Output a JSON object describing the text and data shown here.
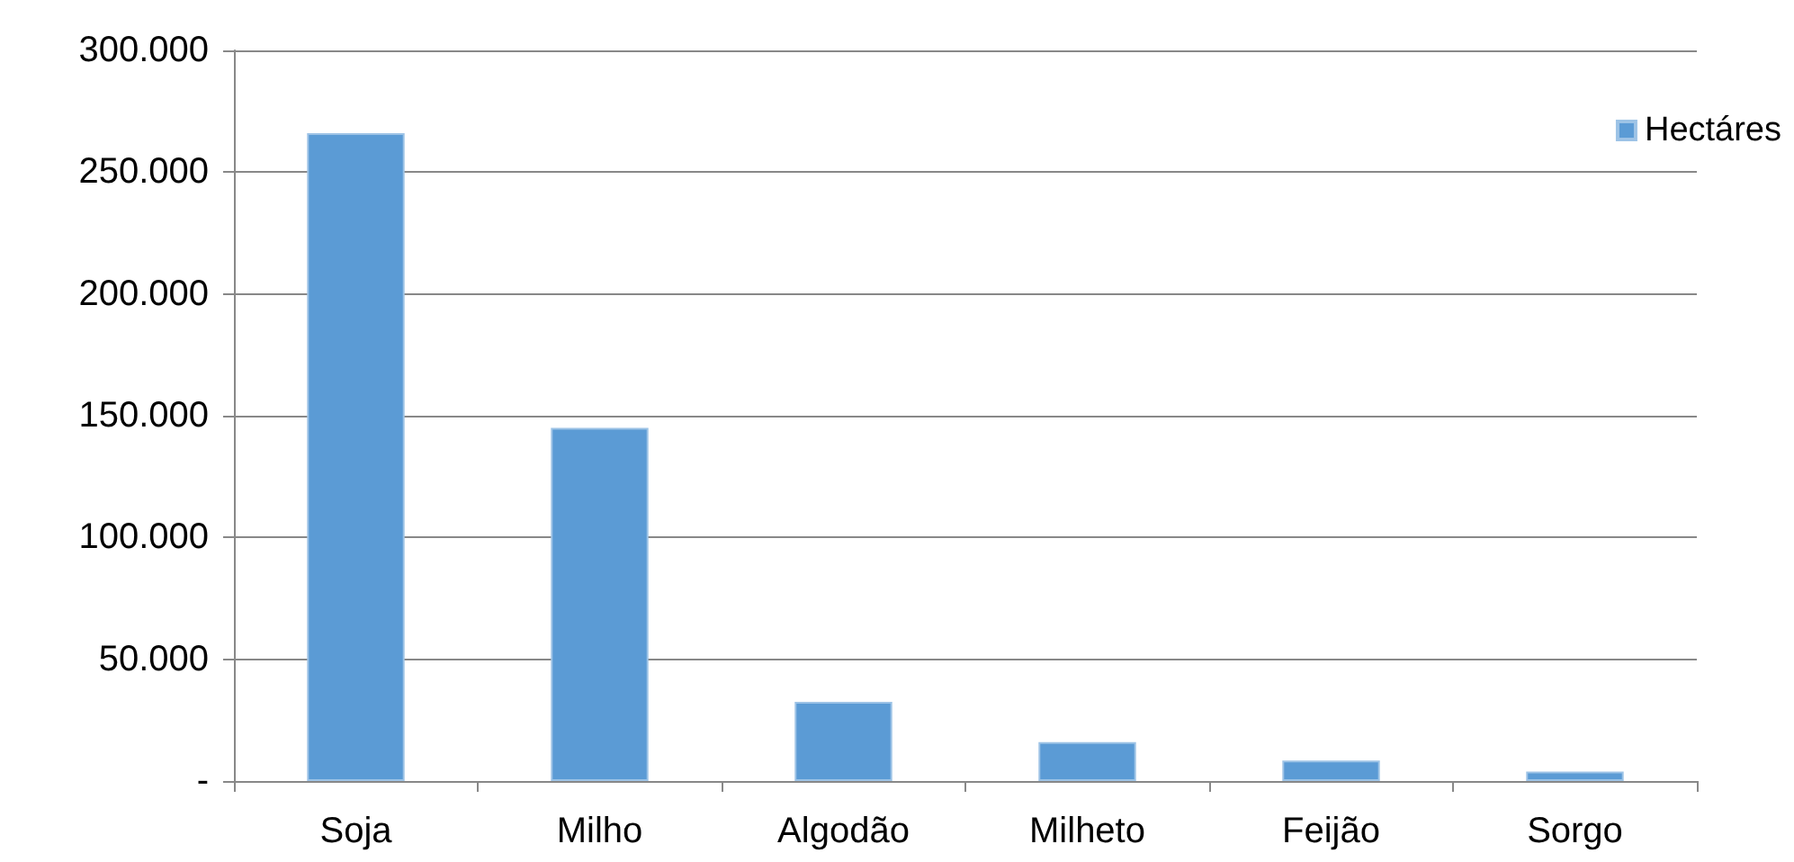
{
  "chart_data": {
    "type": "bar",
    "categories": [
      "Soja",
      "Milho",
      "Algodão",
      "Milheto",
      "Feijão",
      "Sorgo"
    ],
    "series": [
      {
        "name": "Hectáres",
        "color": "#5b9bd5",
        "values": [
          266000,
          145000,
          32500,
          16000,
          8400,
          3900
        ]
      }
    ],
    "ylim": [
      0,
      300000
    ],
    "yticks": [
      {
        "value": 0,
        "label": "-"
      },
      {
        "value": 50000,
        "label": "50.000"
      },
      {
        "value": 100000,
        "label": "100.000"
      },
      {
        "value": 150000,
        "label": "150.000"
      },
      {
        "value": 200000,
        "label": "200.000"
      },
      {
        "value": 250000,
        "label": "250.000"
      },
      {
        "value": 300000,
        "label": "300.000"
      }
    ],
    "grid": "y",
    "legend": "top right"
  }
}
